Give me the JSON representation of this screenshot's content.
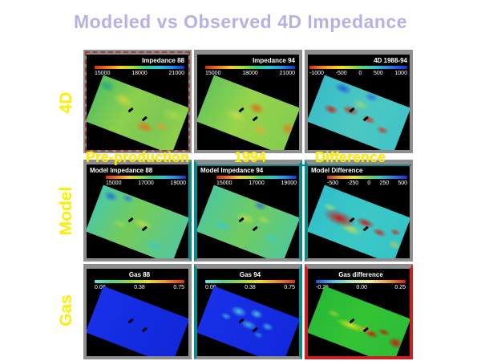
{
  "slide": {
    "title": "Modeled vs Observed 4D Impedance"
  },
  "row_labels": {
    "r1": "4D",
    "r2": "Model",
    "r3": "Gas"
  },
  "column_labels": {
    "c1": "Pre-production",
    "c2": "1994",
    "c3": "Difference"
  },
  "colors": {
    "title_text": "#b5b0e6",
    "label_yellow": "#ffee00",
    "panel_background": "#000000",
    "frame_gray": "#8e8e8e",
    "frame_red_dashed": "#a04030",
    "frame_teal": "#0a8a8a",
    "frame_red": "#cc2020"
  },
  "chart_data": [
    {
      "type": "heatmap",
      "title": "Impedance 88",
      "colorbar": {
        "ticks": [
          "15000",
          "18000",
          "21000"
        ],
        "range": [
          15000,
          21000
        ],
        "orientation": "horizontal",
        "low_color": "red",
        "high_color": "blue"
      },
      "description": "Observed pre-production acoustic impedance map; mostly green-yellow with orange lows lower-center and teal patch upper-left; two well marks"
    },
    {
      "type": "heatmap",
      "title": "Impedance 94",
      "colorbar": {
        "ticks": [
          "15000",
          "18000",
          "21000"
        ],
        "range": [
          15000,
          21000
        ],
        "orientation": "horizontal",
        "low_color": "red",
        "high_color": "blue"
      },
      "description": "Observed 1994 acoustic impedance map; green-yellow with orange anomaly upper-center and orange right corner; two well marks"
    },
    {
      "type": "heatmap",
      "title": "4D 1988-94",
      "colorbar": {
        "ticks": [
          "-1000",
          "-500",
          "0",
          "500",
          "1000"
        ],
        "range": [
          -1000,
          1000
        ],
        "orientation": "horizontal",
        "low_color": "red",
        "high_color": "blue"
      },
      "description": "Observed 4D impedance difference; cyan background with scattered red (decrease) patches mid-map and blue patches along top; two well marks"
    },
    {
      "type": "heatmap",
      "title": "Model Impedance 88",
      "colorbar": {
        "ticks": [
          "15000",
          "17000",
          "19000"
        ],
        "range": [
          15000,
          19000
        ],
        "orientation": "horizontal",
        "low_color": "red",
        "high_color": "blue"
      },
      "description": "Modeled pre-production impedance; mottled cyan-green with blue patches upper-left and yellow-green bands center; two well marks"
    },
    {
      "type": "heatmap",
      "title": "Model Impedance 94",
      "colorbar": {
        "ticks": [
          "15000",
          "17000",
          "19000"
        ],
        "range": [
          15000,
          19000
        ],
        "orientation": "horizontal",
        "low_color": "red",
        "high_color": "blue"
      },
      "description": "Modeled 1994 impedance; cyan-green with yellow patches center and blue spot at top; two well marks"
    },
    {
      "type": "heatmap",
      "title": "Model Difference",
      "colorbar": {
        "ticks": [
          "-500",
          "-250",
          "0",
          "250",
          "500"
        ],
        "range": [
          -500,
          500
        ],
        "orientation": "horizontal",
        "low_color": "red",
        "high_color": "blue"
      },
      "description": "Modeled impedance difference; cyan background with large red anomaly band across center-left and yellow fringes; two well marks"
    },
    {
      "type": "heatmap",
      "title": "Gas 88",
      "colorbar": {
        "ticks": [
          "0.00",
          "0.38",
          "0.75"
        ],
        "range": [
          0.0,
          0.75
        ],
        "orientation": "horizontal",
        "low_color": "cyan",
        "high_color": "red"
      },
      "description": "Simulated gas saturation pre-production; uniform dark blue (no free gas); two well marks"
    },
    {
      "type": "heatmap",
      "title": "Gas 94",
      "colorbar": {
        "ticks": [
          "0.00",
          "0.38",
          "0.75"
        ],
        "range": [
          0.0,
          0.75
        ],
        "orientation": "horizontal",
        "low_color": "cyan",
        "high_color": "red"
      },
      "description": "Simulated gas saturation 1994; dark blue with cyan gas patches across upper-middle of reservoir; two well marks"
    },
    {
      "type": "heatmap",
      "title": "Gas difference",
      "colorbar": {
        "ticks": [
          "-0.25",
          "0.00",
          "0.25"
        ],
        "range": [
          -0.25,
          0.25
        ],
        "orientation": "horizontal",
        "low_color": "blue",
        "high_color": "red"
      },
      "description": "Gas saturation change; green background with yellow-orange streak and red blobs across center-right and red patch at right edge; two well marks"
    }
  ]
}
